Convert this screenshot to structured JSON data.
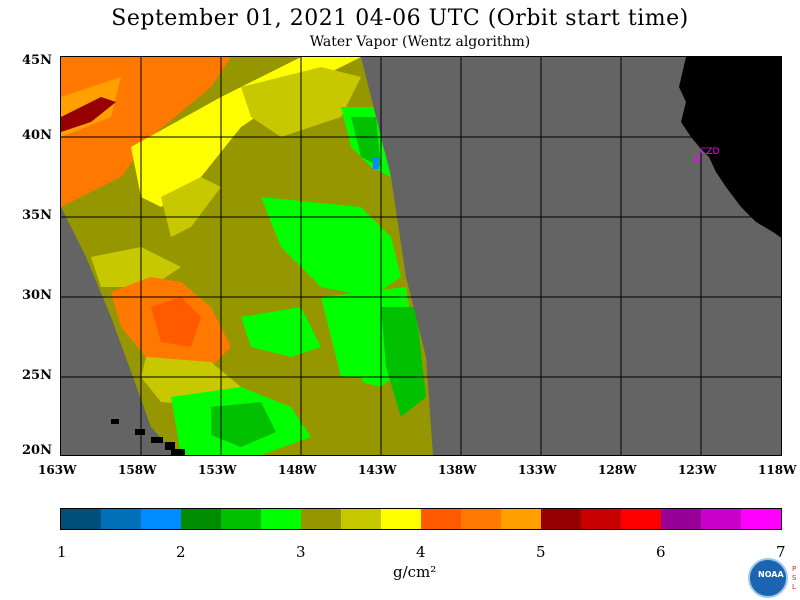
{
  "title": "September 01, 2021  04-06 UTC  (Orbit start time)",
  "subtitle": "Water Vapor (Wentz algorithm)",
  "map": {
    "lat_labels": [
      "45N",
      "40N",
      "35N",
      "30N",
      "25N",
      "20N"
    ],
    "lon_labels": [
      "163W",
      "158W",
      "153W",
      "148W",
      "143W",
      "138W",
      "133W",
      "128W",
      "123W",
      "118W"
    ],
    "station_label": "CZD",
    "colors": {
      "no_data": "#646464",
      "land": "#000000",
      "grid": "#000000"
    }
  },
  "colorbar": {
    "colors": [
      "#004f7a",
      "#0070b8",
      "#008cff",
      "#008c00",
      "#00c000",
      "#00ff00",
      "#969600",
      "#c8c800",
      "#ffff00",
      "#ff5a00",
      "#ff7800",
      "#ffa000",
      "#960000",
      "#c80000",
      "#ff0000",
      "#960096",
      "#c800c8",
      "#ff00ff"
    ],
    "tick_labels": [
      "1",
      "2",
      "3",
      "4",
      "5",
      "6",
      "7"
    ],
    "units": "g/cm²",
    "value_range": [
      1,
      7
    ]
  },
  "logos": {
    "noaa": "NOAA",
    "psl": "P S L"
  }
}
